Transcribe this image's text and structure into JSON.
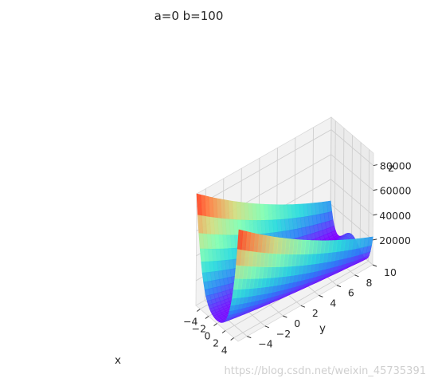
{
  "chart_data": {
    "type": "surface3d",
    "title": "a=0 b=100",
    "xlabel": "x",
    "ylabel": "y",
    "zlabel": "z",
    "function": "(a - x)^2 + b*(y - x^2)^2",
    "a": 0,
    "b": 100,
    "x_range": [
      -5,
      5
    ],
    "y_range": [
      -5,
      10
    ],
    "z_range": [
      0,
      90000
    ],
    "x_ticks": [
      -4,
      -2,
      0,
      2,
      4
    ],
    "x_tick_labels": [
      "−4",
      "−2",
      "0",
      "2",
      "4"
    ],
    "y_ticks": [
      -4,
      -2,
      0,
      2,
      4,
      6,
      8,
      10
    ],
    "y_tick_labels": [
      "−4",
      "−2",
      "0",
      "2",
      "4",
      "6",
      "8",
      "10"
    ],
    "z_ticks": [
      20000,
      40000,
      60000,
      80000
    ],
    "z_tick_labels": [
      "20000",
      "40000",
      "60000",
      "80000"
    ],
    "colormap": "rainbow",
    "colormap_stops": [
      "#8000ff",
      "#2c7ef7",
      "#2adddd",
      "#80ffb4",
      "#d4dd80",
      "#ff7e41",
      "#ff0000"
    ],
    "pane_color": "#f2f2f2",
    "grid": true
  },
  "watermark": "https://blog.csdn.net/weixin_45735391"
}
